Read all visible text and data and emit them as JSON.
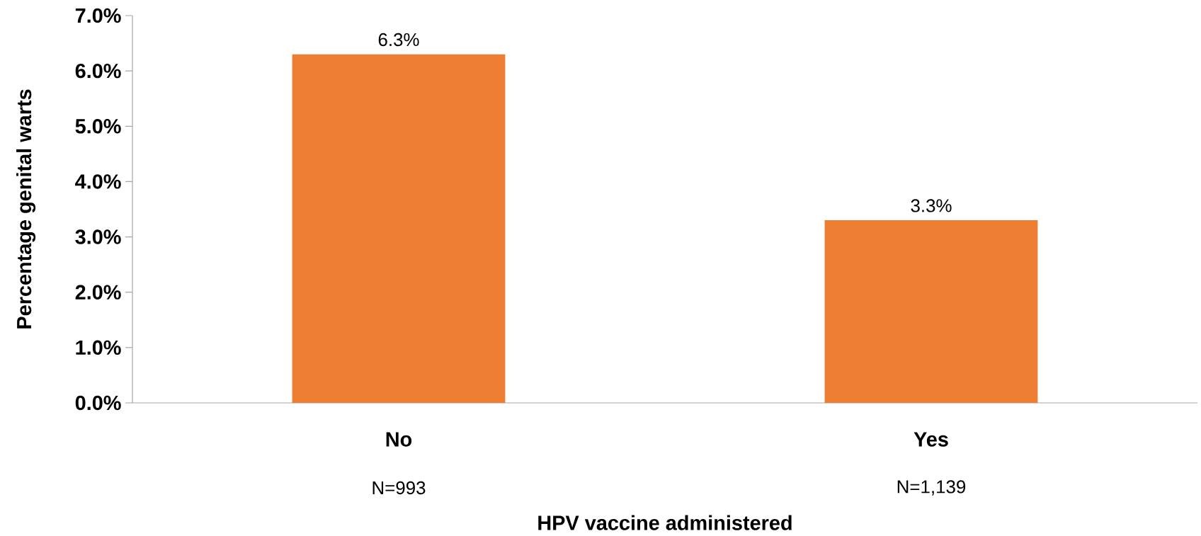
{
  "chart_data": {
    "type": "bar",
    "xlabel": "HPV vaccine administered",
    "ylabel": "Percentage genital warts",
    "categories": [
      "No",
      "Yes"
    ],
    "values": [
      6.3,
      3.3
    ],
    "value_labels": [
      "6.3%",
      "3.3%"
    ],
    "color": "#ed7d31",
    "ylim": [
      0,
      7
    ],
    "yticks": [
      {
        "value": 0,
        "label": "0.0%"
      },
      {
        "value": 1,
        "label": "1.0%"
      },
      {
        "value": 2,
        "label": "2.0%"
      },
      {
        "value": 3,
        "label": "3.0%"
      },
      {
        "value": 4,
        "label": "4.0%"
      },
      {
        "value": 5,
        "label": "5.0%"
      },
      {
        "value": 6,
        "label": "6.0%"
      },
      {
        "value": 7,
        "label": "7.0%"
      }
    ],
    "annotations": [
      "N=993",
      "N=1,139"
    ]
  }
}
